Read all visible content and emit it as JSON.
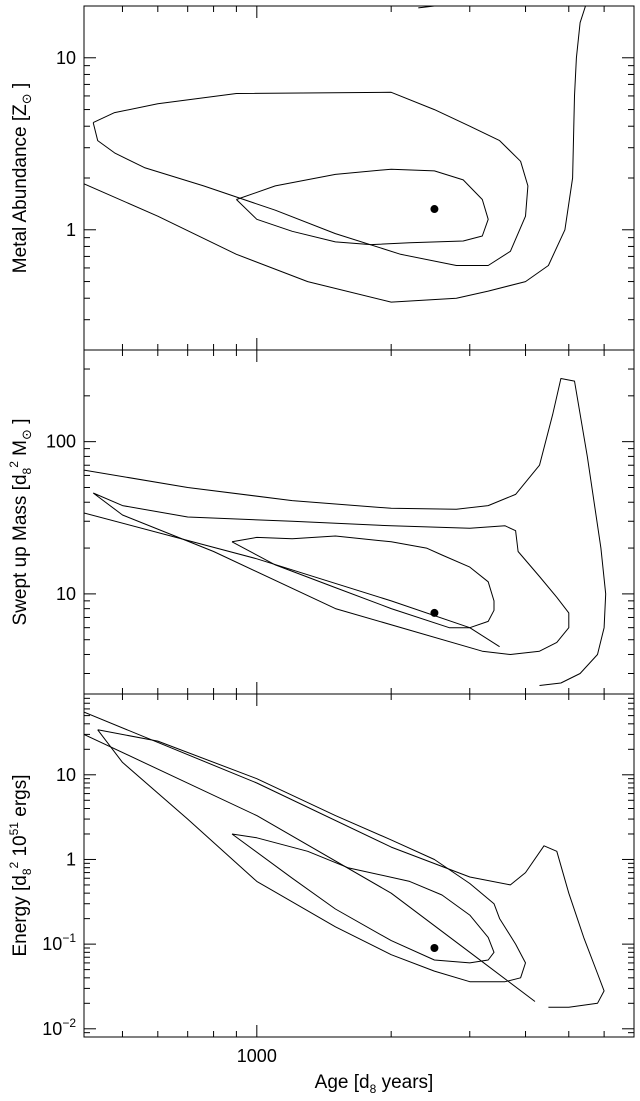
{
  "chart_data": {
    "type": "contour",
    "x_axis": {
      "label": "Age [d",
      "label_sub": "8",
      "label_end": " years]",
      "scale": "log",
      "range": [
        410,
        7000
      ],
      "tick_labels": [
        {
          "value": 1000,
          "text": "1000"
        }
      ]
    },
    "panels": [
      {
        "id": "metal",
        "ylabel": "Metal Abundance [Z",
        "ylabel_sym": "⊙",
        "ylabel_end": "]",
        "y_scale": "log",
        "ylim": [
          0.2,
          20
        ],
        "y_ticks": [
          {
            "value": 1,
            "text": "1"
          },
          {
            "value": 10,
            "text": "10"
          }
        ],
        "best_fit": {
          "x": 2500,
          "y": 1.32
        },
        "contours": [
          [
            [
              2300,
              19.5
            ],
            [
              2500,
              20
            ]
          ],
          [
            [
              410,
              1.85
            ],
            [
              600,
              1.2
            ],
            [
              900,
              0.72
            ],
            [
              1300,
              0.5
            ],
            [
              2000,
              0.38
            ],
            [
              2800,
              0.4
            ],
            [
              3300,
              0.44
            ],
            [
              4000,
              0.5
            ],
            [
              4500,
              0.62
            ],
            [
              4900,
              1.0
            ],
            [
              5100,
              2.0
            ],
            [
              5150,
              6.0
            ],
            [
              5200,
              10
            ],
            [
              5300,
              16
            ],
            [
              5450,
              20
            ]
          ],
          [
            [
              430,
              4.2
            ],
            [
              440,
              3.3
            ],
            [
              480,
              2.8
            ],
            [
              560,
              2.3
            ],
            [
              760,
              1.8
            ],
            [
              1100,
              1.3
            ],
            [
              1500,
              0.95
            ],
            [
              2100,
              0.72
            ],
            [
              2800,
              0.62
            ],
            [
              3300,
              0.62
            ],
            [
              3700,
              0.75
            ],
            [
              4000,
              1.2
            ],
            [
              4050,
              1.8
            ],
            [
              3900,
              2.5
            ],
            [
              3500,
              3.3
            ],
            [
              3000,
              4.0
            ],
            [
              2500,
              5.0
            ],
            [
              2000,
              6.3
            ],
            [
              900,
              6.2
            ],
            [
              600,
              5.4
            ],
            [
              480,
              4.8
            ],
            [
              430,
              4.2
            ]
          ],
          [
            [
              900,
              1.5
            ],
            [
              1000,
              1.15
            ],
            [
              1200,
              0.98
            ],
            [
              1500,
              0.85
            ],
            [
              1800,
              0.82
            ],
            [
              2200,
              0.84
            ],
            [
              2900,
              0.86
            ],
            [
              3200,
              0.92
            ],
            [
              3300,
              1.15
            ],
            [
              3200,
              1.5
            ],
            [
              2900,
              1.95
            ],
            [
              2500,
              2.2
            ],
            [
              2000,
              2.25
            ],
            [
              1500,
              2.1
            ],
            [
              1100,
              1.8
            ],
            [
              900,
              1.5
            ]
          ]
        ]
      },
      {
        "id": "mass",
        "ylabel": "Swept up Mass [d",
        "ylabel_sub": "8",
        "ylabel_sup": "2",
        "ylabel_end": " M",
        "ylabel_sym": "⊙",
        "ylabel_close": "]",
        "y_scale": "log",
        "ylim": [
          2.2,
          400
        ],
        "y_ticks": [
          {
            "value": 10,
            "text": "10"
          },
          {
            "value": 100,
            "text": "100"
          }
        ],
        "best_fit": {
          "x": 2500,
          "y": 7.5
        },
        "contours": [
          [
            [
              410,
              65
            ],
            [
              700,
              50
            ],
            [
              1200,
              41
            ],
            [
              2000,
              36.5
            ],
            [
              2800,
              36
            ],
            [
              3300,
              38
            ],
            [
              3800,
              45
            ],
            [
              4300,
              70
            ],
            [
              4600,
              150
            ],
            [
              4800,
              260
            ],
            [
              5150,
              250
            ],
            [
              5500,
              80
            ],
            [
              5900,
              20
            ],
            [
              6050,
              10
            ],
            [
              6000,
              6
            ],
            [
              5800,
              4
            ],
            [
              5300,
              3
            ],
            [
              4800,
              2.6
            ],
            [
              4300,
              2.5
            ]
          ],
          [
            [
              430,
              46
            ],
            [
              500,
              38
            ],
            [
              700,
              32
            ],
            [
              1200,
              30
            ],
            [
              2000,
              28
            ],
            [
              3000,
              27
            ],
            [
              3600,
              28
            ],
            [
              3800,
              26
            ],
            [
              3850,
              19
            ],
            [
              4300,
              13
            ],
            [
              4700,
              9.5
            ],
            [
              5000,
              7.5
            ],
            [
              5000,
              6
            ],
            [
              4700,
              4.8
            ],
            [
              4300,
              4.2
            ],
            [
              3700,
              4
            ],
            [
              3200,
              4.2
            ],
            [
              1500,
              8
            ],
            [
              800,
              19
            ],
            [
              500,
              33
            ],
            [
              430,
              46
            ]
          ],
          [
            [
              410,
              34
            ],
            [
              1000,
              17
            ],
            [
              2000,
              9
            ],
            [
              3000,
              6
            ],
            [
              3500,
              4.5
            ]
          ],
          [
            [
              880,
              22
            ],
            [
              1000,
              23.5
            ],
            [
              1200,
              23
            ],
            [
              1500,
              24
            ],
            [
              2000,
              22
            ],
            [
              2400,
              20
            ],
            [
              2600,
              18
            ],
            [
              3000,
              15
            ],
            [
              3300,
              12
            ],
            [
              3400,
              9
            ],
            [
              3400,
              7.8
            ],
            [
              3300,
              6.6
            ],
            [
              3000,
              6
            ],
            [
              2700,
              6
            ],
            [
              2000,
              8
            ],
            [
              1500,
              11
            ],
            [
              1100,
              15.5
            ],
            [
              880,
              22
            ]
          ]
        ]
      },
      {
        "id": "energy",
        "ylabel": "Energy [d",
        "ylabel_sub": "8",
        "ylabel_sup": "2",
        "ylabel_mid": " 10",
        "ylabel_sup2": "51",
        "ylabel_end": " ergs]",
        "y_scale": "log",
        "ylim": [
          0.008,
          90
        ],
        "y_ticks": [
          {
            "value": 0.01,
            "base": "10",
            "exp": "−2"
          },
          {
            "value": 0.1,
            "base": "10",
            "exp": "−1"
          },
          {
            "value": 1,
            "text": "1"
          },
          {
            "value": 10,
            "text": "10"
          }
        ],
        "best_fit": {
          "x": 2500,
          "y": 0.09
        },
        "contours": [
          [
            [
              410,
              55
            ],
            [
              1000,
              8
            ],
            [
              2000,
              1.4
            ],
            [
              3000,
              0.62
            ],
            [
              3700,
              0.5
            ],
            [
              4000,
              0.7
            ],
            [
              4400,
              1.45
            ],
            [
              4700,
              1.25
            ],
            [
              5000,
              0.4
            ],
            [
              5400,
              0.12
            ],
            [
              5800,
              0.045
            ],
            [
              6000,
              0.028
            ],
            [
              5800,
              0.02
            ],
            [
              5000,
              0.018
            ],
            [
              4500,
              0.018
            ]
          ],
          [
            [
              440,
              34
            ],
            [
              600,
              25
            ],
            [
              1000,
              9
            ],
            [
              1500,
              3.3
            ],
            [
              2000,
              1.7
            ],
            [
              2500,
              1.0
            ],
            [
              3000,
              0.52
            ],
            [
              3400,
              0.3
            ],
            [
              3500,
              0.2
            ],
            [
              3800,
              0.1
            ],
            [
              4000,
              0.06
            ],
            [
              3900,
              0.04
            ],
            [
              3600,
              0.036
            ],
            [
              3000,
              0.036
            ],
            [
              2500,
              0.048
            ],
            [
              2000,
              0.075
            ],
            [
              1500,
              0.16
            ],
            [
              1000,
              0.55
            ],
            [
              700,
              3
            ],
            [
              500,
              14
            ],
            [
              440,
              34
            ]
          ],
          [
            [
              410,
              30
            ],
            [
              1000,
              3.3
            ],
            [
              2000,
              0.4
            ],
            [
              3000,
              0.08
            ],
            [
              4200,
              0.021
            ]
          ],
          [
            [
              880,
              2.0
            ],
            [
              1000,
              1.8
            ],
            [
              1300,
              1.25
            ],
            [
              1600,
              0.8
            ],
            [
              2200,
              0.55
            ],
            [
              2600,
              0.38
            ],
            [
              3000,
              0.22
            ],
            [
              3300,
              0.12
            ],
            [
              3400,
              0.08
            ],
            [
              3300,
              0.065
            ],
            [
              3000,
              0.06
            ],
            [
              2500,
              0.065
            ],
            [
              2000,
              0.11
            ],
            [
              1500,
              0.26
            ],
            [
              1200,
              0.6
            ],
            [
              880,
              2.0
            ]
          ]
        ]
      }
    ]
  }
}
